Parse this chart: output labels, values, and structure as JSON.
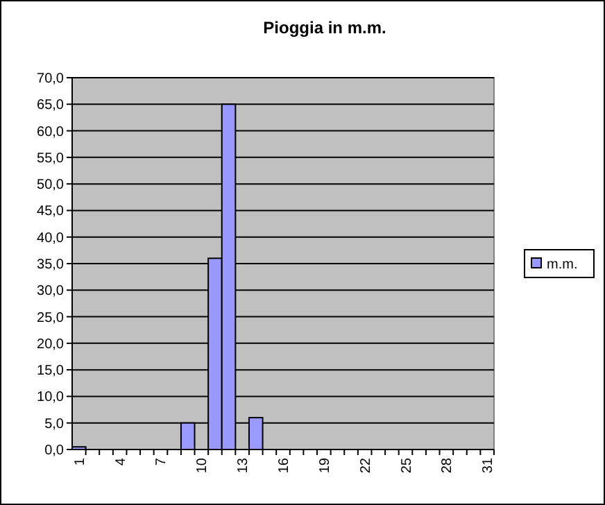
{
  "chart_data": {
    "type": "bar",
    "title": "Pioggia in m.m.",
    "categories": [
      "1",
      null,
      null,
      "4",
      null,
      null,
      "7",
      null,
      null,
      "10",
      null,
      null,
      "13",
      null,
      null,
      "16",
      null,
      null,
      "19",
      null,
      null,
      "22",
      null,
      null,
      "25",
      null,
      null,
      "28",
      null,
      null,
      "31"
    ],
    "series": [
      {
        "name": "m.m.",
        "color": "#9999ff",
        "values": [
          0.5,
          0,
          0,
          0,
          0,
          0,
          0,
          0,
          5,
          0,
          36,
          65,
          0,
          6,
          0,
          0,
          0,
          0,
          0,
          0,
          0,
          0,
          0,
          0,
          0,
          0,
          0,
          0,
          0,
          0,
          0
        ]
      }
    ],
    "ylim": [
      0,
      70
    ],
    "yticks": [
      {
        "value": 0,
        "label": "0,0"
      },
      {
        "value": 5,
        "label": "5,0"
      },
      {
        "value": 10,
        "label": "10,0"
      },
      {
        "value": 15,
        "label": "15,0"
      },
      {
        "value": 20,
        "label": "20,0"
      },
      {
        "value": 25,
        "label": "25,0"
      },
      {
        "value": 30,
        "label": "30,0"
      },
      {
        "value": 35,
        "label": "35,0"
      },
      {
        "value": 40,
        "label": "40,0"
      },
      {
        "value": 45,
        "label": "45,0"
      },
      {
        "value": 50,
        "label": "50,0"
      },
      {
        "value": 55,
        "label": "55,0"
      },
      {
        "value": 60,
        "label": "60,0"
      },
      {
        "value": 65,
        "label": "65,0"
      },
      {
        "value": 70,
        "label": "70,0"
      }
    ],
    "grid": "y",
    "legend": "right"
  }
}
